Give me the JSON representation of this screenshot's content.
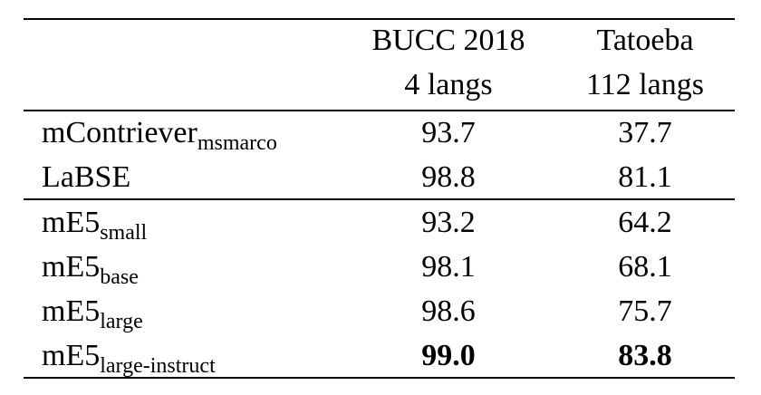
{
  "table": {
    "header": {
      "col1_line1": "BUCC 2018",
      "col1_line2": "4 langs",
      "col2_line1": "Tatoeba",
      "col2_line2": "112 langs"
    },
    "rows": [
      {
        "model": "mContriever",
        "sub": "msmarco",
        "bucc": "93.7",
        "tatoeba": "37.7",
        "bold": false
      },
      {
        "model": "LaBSE",
        "sub": "",
        "bucc": "98.8",
        "tatoeba": "81.1",
        "bold": false
      },
      {
        "model": "mE5",
        "sub": "small",
        "bucc": "93.2",
        "tatoeba": "64.2",
        "bold": false
      },
      {
        "model": "mE5",
        "sub": "base",
        "bucc": "98.1",
        "tatoeba": "68.1",
        "bold": false
      },
      {
        "model": "mE5",
        "sub": "large",
        "bucc": "98.6",
        "tatoeba": "75.7",
        "bold": false
      },
      {
        "model": "mE5",
        "sub": "large-instruct",
        "bucc": "99.0",
        "tatoeba": "83.8",
        "bold": true
      }
    ]
  }
}
